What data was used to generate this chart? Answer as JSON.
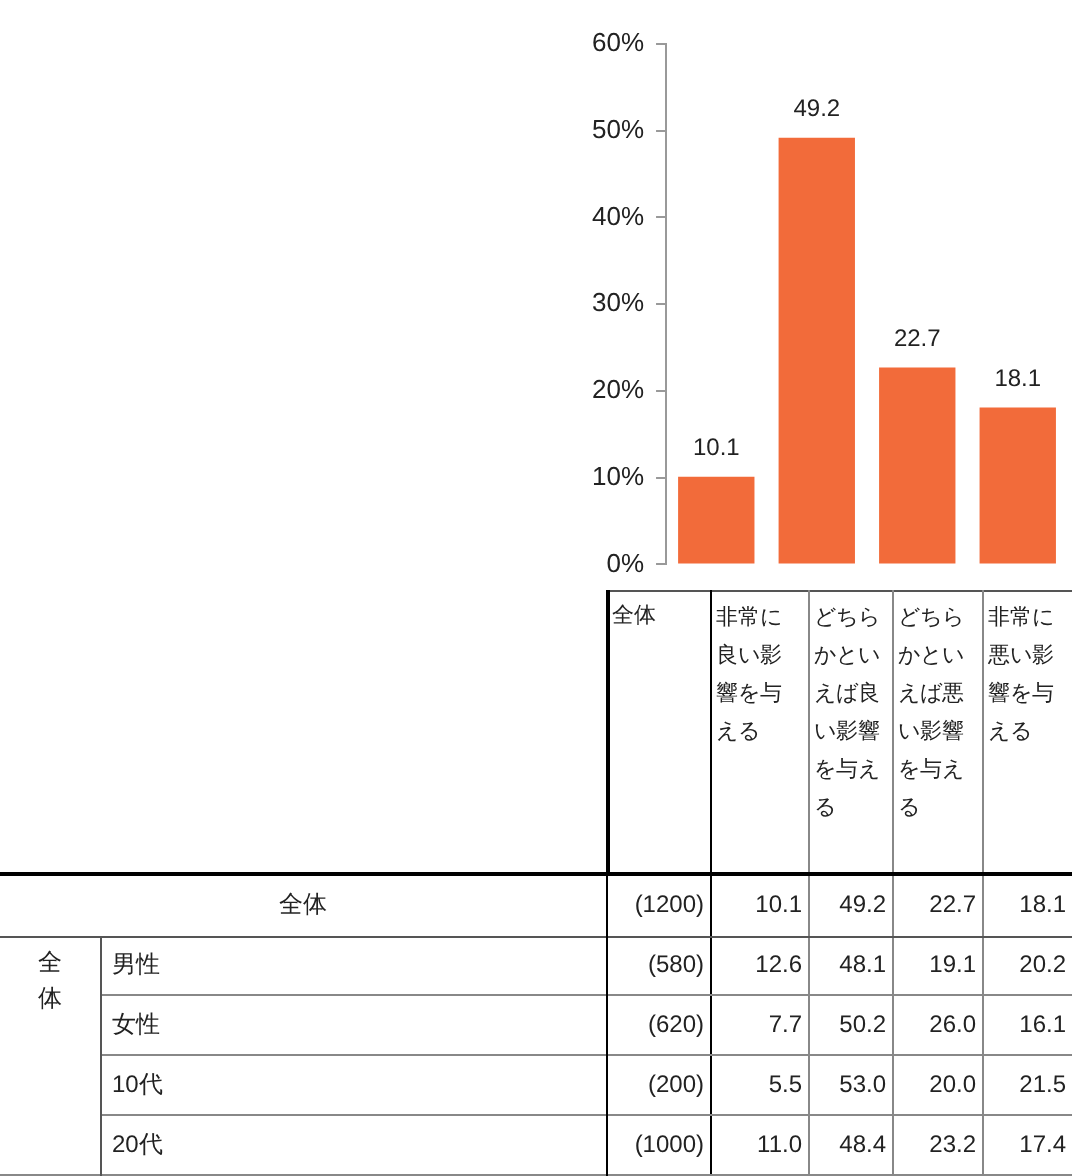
{
  "chart_data": {
    "type": "bar",
    "categories": [
      "非常に良い影響を与える",
      "どちらかといえば良い影響を与える",
      "どちらかといえば悪い影響を与える",
      "非常に悪い影響を与える"
    ],
    "values": [
      10.1,
      49.2,
      22.7,
      18.1
    ],
    "value_labels": [
      "10.1",
      "49.2",
      "22.7",
      "18.1"
    ],
    "color": "#f26b3a",
    "ylim": [
      0,
      60
    ],
    "yticks": [
      {
        "value": 0,
        "label": "0%"
      },
      {
        "value": 10,
        "label": "10%"
      },
      {
        "value": 20,
        "label": "20%"
      },
      {
        "value": 30,
        "label": "30%"
      },
      {
        "value": 40,
        "label": "40%"
      },
      {
        "value": 50,
        "label": "50%"
      },
      {
        "value": 60,
        "label": "60%"
      }
    ],
    "grid": false,
    "legend": false,
    "tick_labels": "y",
    "annotations": [
      "全体",
      "全体",
      "全体",
      "(1200)",
      "10.1",
      "49.2",
      "22.7",
      "18.1",
      "男性",
      "(580)",
      "12.6",
      "48.1",
      "19.1",
      "20.2",
      "女性",
      "(620)",
      "7.7",
      "50.2",
      "26.0",
      "16.1",
      "10代",
      "(200)",
      "5.5",
      "53.0",
      "20.0",
      "21.5",
      "20代",
      "(1000)",
      "11.0",
      "48.4",
      "23.2",
      "17.4"
    ]
  }
}
